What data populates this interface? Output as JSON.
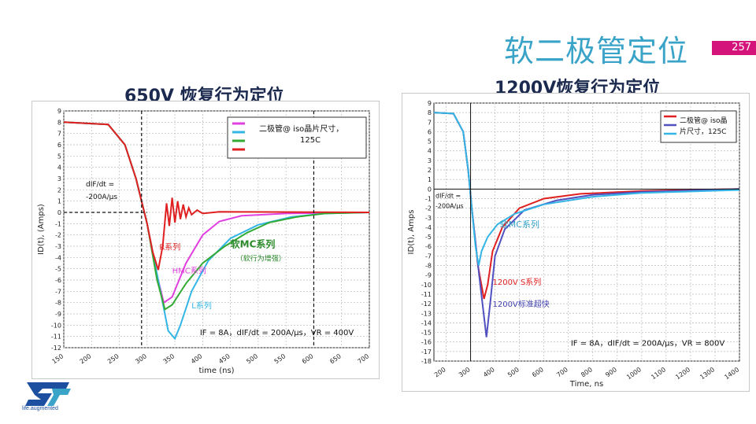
{
  "slide": {
    "title": "软二极管定位",
    "page_number": "257",
    "logo_text": "life.augmented",
    "accent_color": "#d4147a",
    "title_color": "#3aa3c8"
  },
  "chart_data": [
    {
      "type": "line",
      "title": "650V 恢复行为定位",
      "xlabel": "time (ns)",
      "ylabel": "ID(t), (Amps)",
      "xlim": [
        150,
        700
      ],
      "ylim": [
        -12,
        9
      ],
      "x_ticks": [
        150,
        200,
        250,
        300,
        350,
        400,
        450,
        500,
        550,
        600,
        650,
        700
      ],
      "y_ticks": [
        9,
        8,
        7,
        6,
        5,
        4,
        3,
        2,
        1,
        0,
        -1,
        -2,
        -3,
        -4,
        -5,
        -6,
        -7,
        -8,
        -9,
        -10,
        -11,
        -12
      ],
      "grid": true,
      "legend": {
        "position": "top-right",
        "text_line1": "二极管@ iso晶片尺寸，",
        "text_line2": "125C",
        "colors": [
          "#e040e0",
          "#33b5e5",
          "#33aa33",
          "#e02020"
        ]
      },
      "annotations": {
        "didt_line1": "dIF/dt =",
        "didt_line2": "-200A/μs",
        "r_series": "R系列",
        "hmc_series": "HMC系列",
        "l_series": "L系列",
        "mc_series": "软MC系列",
        "mc_note": "（软行为增强）",
        "conditions": "IF = 8A，dIF/dt = 200A/μs，VR = 400V"
      },
      "series": [
        {
          "color": "#e040e0",
          "points": [
            [
              150,
              8
            ],
            [
              230,
              7.8
            ],
            [
              260,
              6
            ],
            [
              280,
              3
            ],
            [
              300,
              -1
            ],
            [
              315,
              -5
            ],
            [
              330,
              -8
            ],
            [
              345,
              -7.5
            ],
            [
              370,
              -4.5
            ],
            [
              400,
              -2
            ],
            [
              430,
              -0.8
            ],
            [
              470,
              -0.3
            ],
            [
              550,
              -0.1
            ],
            [
              700,
              0
            ]
          ]
        },
        {
          "color": "#33b5e5",
          "points": [
            [
              150,
              8
            ],
            [
              230,
              7.8
            ],
            [
              260,
              6
            ],
            [
              280,
              3
            ],
            [
              300,
              -1
            ],
            [
              320,
              -6
            ],
            [
              338,
              -10.5
            ],
            [
              350,
              -11.2
            ],
            [
              360,
              -10
            ],
            [
              380,
              -7
            ],
            [
              410,
              -4.3
            ],
            [
              450,
              -2.3
            ],
            [
              500,
              -1.1
            ],
            [
              560,
              -0.4
            ],
            [
              620,
              -0.1
            ],
            [
              700,
              0
            ]
          ]
        },
        {
          "color": "#33aa33",
          "points": [
            [
              150,
              8
            ],
            [
              230,
              7.8
            ],
            [
              260,
              6
            ],
            [
              280,
              3
            ],
            [
              300,
              -1
            ],
            [
              318,
              -6
            ],
            [
              332,
              -8.6
            ],
            [
              345,
              -8.2
            ],
            [
              370,
              -6.3
            ],
            [
              400,
              -4.5
            ],
            [
              440,
              -3
            ],
            [
              480,
              -1.8
            ],
            [
              520,
              -0.9
            ],
            [
              570,
              -0.4
            ],
            [
              620,
              -0.1
            ],
            [
              700,
              0
            ]
          ]
        },
        {
          "color": "#e02020",
          "points": [
            [
              150,
              8
            ],
            [
              230,
              7.8
            ],
            [
              260,
              6
            ],
            [
              280,
              3
            ],
            [
              300,
              -1
            ],
            [
              310,
              -3.5
            ],
            [
              320,
              -5.1
            ],
            [
              328,
              -3
            ],
            [
              335,
              0.8
            ],
            [
              340,
              -1.2
            ],
            [
              345,
              1.3
            ],
            [
              350,
              -0.9
            ],
            [
              355,
              1
            ],
            [
              360,
              -0.6
            ],
            [
              365,
              0.7
            ],
            [
              370,
              -0.4
            ],
            [
              375,
              0.4
            ],
            [
              380,
              -0.2
            ],
            [
              390,
              0.2
            ],
            [
              400,
              -0.1
            ],
            [
              430,
              0.05
            ],
            [
              700,
              0
            ]
          ]
        }
      ]
    },
    {
      "type": "line",
      "title": "1200V恢复行为定位",
      "xlabel": "Time, ns",
      "ylabel": "ID(t), Amps",
      "xlim": [
        150,
        1400
      ],
      "ylim": [
        -18,
        9
      ],
      "x_ticks": [
        200,
        300,
        400,
        500,
        600,
        700,
        800,
        900,
        1000,
        1100,
        1200,
        1300,
        1400
      ],
      "y_ticks": [
        9,
        8,
        7,
        6,
        5,
        4,
        3,
        2,
        1,
        0,
        -1,
        -2,
        -3,
        -4,
        -5,
        -6,
        -7,
        -8,
        -9,
        -10,
        -11,
        -12,
        -13,
        -14,
        -15,
        -16,
        -17,
        -18
      ],
      "grid": true,
      "legend": {
        "position": "top-right",
        "text_line1": "二极管@ iso晶",
        "text_line2": "片尺寸，125C",
        "colors": [
          "#e02020",
          "#5050c0",
          "#33b5e5"
        ]
      },
      "annotations": {
        "didt_line1": "dIF/dt =",
        "didt_line2": "-200A/μs",
        "mc_series": "软MC系列",
        "s_series": "1200V S系列",
        "std_series": "1200V标准超快",
        "conditions": "IF = 8A，dIF/dt = 200A/μs，VR = 800V"
      },
      "series": [
        {
          "color": "#e02020",
          "points": [
            [
              150,
              8
            ],
            [
              230,
              7.9
            ],
            [
              270,
              6
            ],
            [
              290,
              2
            ],
            [
              305,
              -2
            ],
            [
              330,
              -8
            ],
            [
              355,
              -11.5
            ],
            [
              370,
              -10
            ],
            [
              390,
              -6.5
            ],
            [
              430,
              -4
            ],
            [
              500,
              -2
            ],
            [
              600,
              -1
            ],
            [
              750,
              -0.5
            ],
            [
              1000,
              -0.2
            ],
            [
              1400,
              0
            ]
          ]
        },
        {
          "color": "#5050c0",
          "points": [
            [
              150,
              8
            ],
            [
              230,
              7.9
            ],
            [
              270,
              6
            ],
            [
              290,
              2
            ],
            [
              305,
              -2
            ],
            [
              335,
              -9
            ],
            [
              365,
              -15.5
            ],
            [
              380,
              -12
            ],
            [
              400,
              -7
            ],
            [
              440,
              -4.2
            ],
            [
              520,
              -2.2
            ],
            [
              650,
              -1.2
            ],
            [
              800,
              -0.6
            ],
            [
              1000,
              -0.3
            ],
            [
              1400,
              0
            ]
          ]
        },
        {
          "color": "#33b5e5",
          "points": [
            [
              150,
              8
            ],
            [
              230,
              7.9
            ],
            [
              270,
              6
            ],
            [
              290,
              2
            ],
            [
              305,
              -2
            ],
            [
              320,
              -6
            ],
            [
              333,
              -8
            ],
            [
              345,
              -6.5
            ],
            [
              370,
              -5
            ],
            [
              410,
              -3.7
            ],
            [
              480,
              -2.6
            ],
            [
              600,
              -1.6
            ],
            [
              800,
              -0.8
            ],
            [
              1000,
              -0.4
            ],
            [
              1400,
              -0.1
            ]
          ]
        }
      ]
    }
  ]
}
